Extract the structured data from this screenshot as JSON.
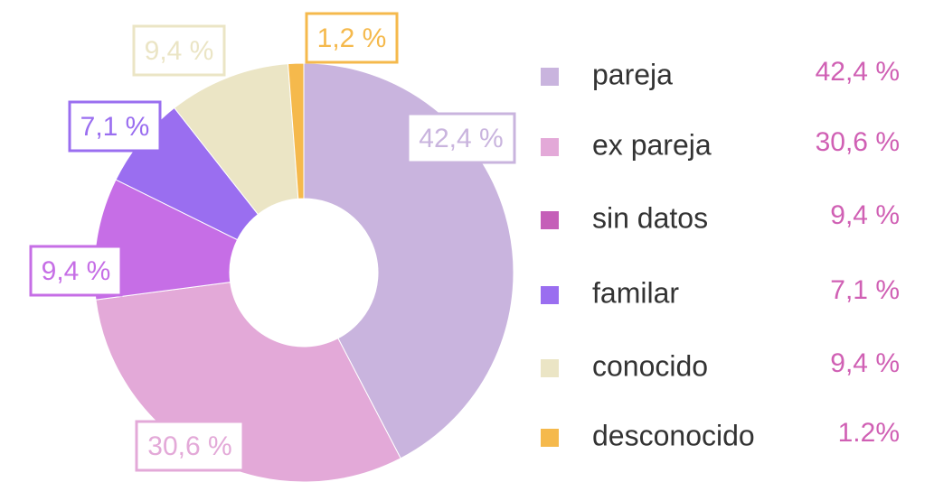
{
  "chart_data": {
    "type": "pie",
    "donut": true,
    "categories": [
      "pareja",
      "ex pareja",
      "sin datos",
      "familar",
      "conocido",
      "desconocido"
    ],
    "values": [
      42.4,
      30.6,
      9.4,
      7.1,
      9.4,
      1.2
    ],
    "value_labels": [
      "42,4 %",
      "30,6 %",
      "9,4 %",
      "7,1 %",
      "9,4 %",
      "1,2 %"
    ],
    "legend_value_labels": [
      "42,4 %",
      "30,6 %",
      "9,4 %",
      "7,1 %",
      "9,4 %",
      "1.2%"
    ],
    "colors": [
      "#c9b4de",
      "#e3a9d8",
      "#c66ee6",
      "#9a6ef0",
      "#ebe5c5",
      "#f5b94c"
    ],
    "legend_marker_colors": [
      "#c9b4de",
      "#e3a9d8",
      "#c55fb8",
      "#9a6ef0",
      "#ebe5c5",
      "#f5b94c"
    ],
    "legend": "right"
  }
}
